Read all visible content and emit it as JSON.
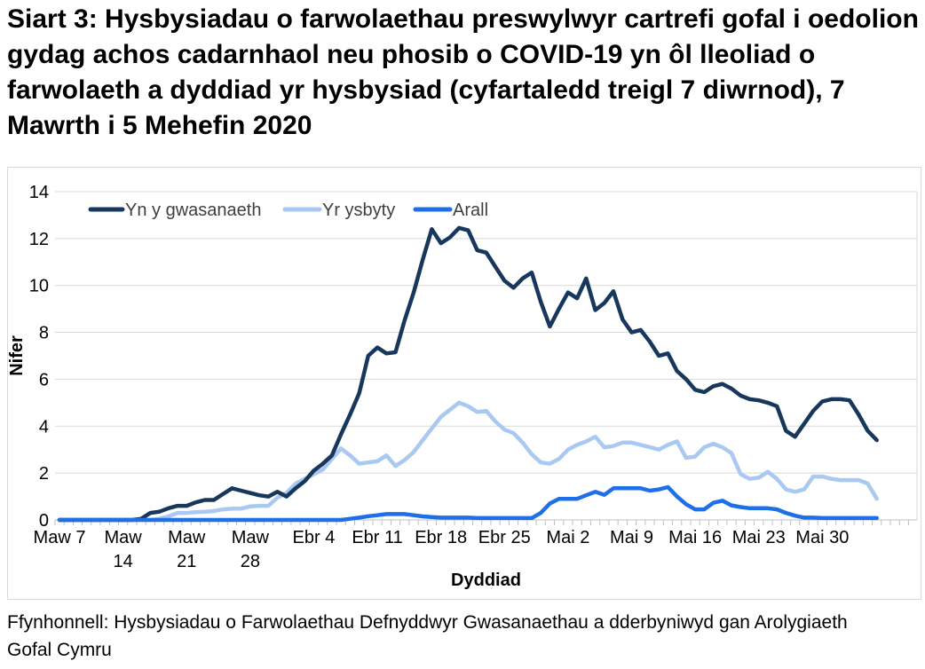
{
  "header": {
    "title": "Siart 3: Hysbysiadau o farwolaethau preswylwyr cartrefi gofal i oedolion gydag achos cadarnhaol neu phosib o COVID-19 yn ôl lleoliad o farwolaeth a dyddiad yr hysbysiad (cyfartaledd treigl 7 diwrnod), 7 Mawrth i 5 Mehefin 2020"
  },
  "footer": {
    "source": "Ffynhonnell: Hysbysiadau o Farwolaethau Defnyddwyr Gwasanaethau a dderbyniwyd gan Arolygiaeth Gofal Cymru"
  },
  "chart_data": {
    "type": "line",
    "xlabel": "Dyddiad",
    "ylabel": "Nifer",
    "ylim": [
      0,
      14
    ],
    "ytick_step": 2,
    "grid": true,
    "legend_position": "top-left-inside",
    "x_start": "Maw 7",
    "x_end": "Mehefin 5",
    "days_total": 91,
    "xtick_day_indices": [
      0,
      7,
      14,
      21,
      28,
      35,
      42,
      49,
      56,
      63,
      70,
      77,
      84
    ],
    "xtick_labels": [
      [
        "Maw 7"
      ],
      [
        "Maw",
        "14"
      ],
      [
        "Maw",
        "21"
      ],
      [
        "Maw",
        "28"
      ],
      [
        "Ebr 4"
      ],
      [
        "Ebr 11"
      ],
      [
        "Ebr 18"
      ],
      [
        "Ebr 25"
      ],
      [
        "Mai 2"
      ],
      [
        "Mai 9"
      ],
      [
        "Mai 16"
      ],
      [
        "Mai 23"
      ],
      [
        "Mai 30"
      ]
    ],
    "grid_color": "#d9d9d9",
    "tick_color": "#bfbfbf",
    "text_color": "#000000",
    "legend_text_color": "#3f3f3f",
    "series": [
      {
        "name": "Yn y gwasanaeth",
        "color": "#17375d",
        "values": [
          0,
          0,
          0,
          0,
          0,
          0,
          0,
          0,
          0,
          0.05,
          0.3,
          0.35,
          0.5,
          0.6,
          0.6,
          0.75,
          0.85,
          0.85,
          1.1,
          1.35,
          1.25,
          1.15,
          1.05,
          1.0,
          1.2,
          1.0,
          1.35,
          1.65,
          2.1,
          2.4,
          2.75,
          3.65,
          4.5,
          5.4,
          7.0,
          7.35,
          7.1,
          7.15,
          8.5,
          9.7,
          11.1,
          12.4,
          11.8,
          12.05,
          12.45,
          12.35,
          11.5,
          11.4,
          10.8,
          10.2,
          9.9,
          10.3,
          10.55,
          9.3,
          8.25,
          9.0,
          9.7,
          9.45,
          10.3,
          8.95,
          9.25,
          9.75,
          8.55,
          8.0,
          8.1,
          7.6,
          7.0,
          7.1,
          6.35,
          6.0,
          5.55,
          5.45,
          5.7,
          5.8,
          5.6,
          5.3,
          5.15,
          5.1,
          5.0,
          4.85,
          3.8,
          3.55,
          4.1,
          4.65,
          5.05,
          5.15,
          5.15,
          5.1,
          4.5,
          3.8,
          3.4
        ]
      },
      {
        "name": "Yr ysbyty",
        "color": "#a9c9f3",
        "values": [
          0,
          0,
          0,
          0,
          0,
          0,
          0,
          0,
          0,
          0,
          0,
          0.05,
          0.15,
          0.3,
          0.3,
          0.33,
          0.35,
          0.38,
          0.45,
          0.48,
          0.48,
          0.58,
          0.6,
          0.6,
          0.95,
          1.15,
          1.55,
          1.75,
          1.95,
          2.15,
          2.6,
          3.05,
          2.75,
          2.4,
          2.45,
          2.5,
          2.75,
          2.3,
          2.55,
          2.9,
          3.4,
          3.9,
          4.4,
          4.7,
          5.0,
          4.85,
          4.6,
          4.65,
          4.2,
          3.85,
          3.7,
          3.3,
          2.8,
          2.45,
          2.4,
          2.6,
          3.0,
          3.2,
          3.35,
          3.55,
          3.1,
          3.15,
          3.3,
          3.3,
          3.2,
          3.1,
          3.0,
          3.2,
          3.35,
          2.65,
          2.7,
          3.1,
          3.25,
          3.1,
          2.85,
          1.95,
          1.75,
          1.8,
          2.05,
          1.75,
          1.3,
          1.2,
          1.3,
          1.85,
          1.85,
          1.75,
          1.7,
          1.7,
          1.7,
          1.55,
          0.9
        ]
      },
      {
        "name": "Arall",
        "color": "#1e6fe8",
        "values": [
          0,
          0,
          0,
          0,
          0,
          0,
          0,
          0,
          0,
          0,
          0,
          0,
          0,
          0,
          0,
          0,
          0,
          0,
          0,
          0,
          0,
          0,
          0,
          0,
          0,
          0,
          0,
          0,
          0,
          0,
          0,
          0,
          0.05,
          0.1,
          0.16,
          0.2,
          0.25,
          0.25,
          0.25,
          0.2,
          0.15,
          0.12,
          0.1,
          0.1,
          0.1,
          0.1,
          0.08,
          0.08,
          0.08,
          0.08,
          0.08,
          0.08,
          0.08,
          0.3,
          0.7,
          0.9,
          0.9,
          0.9,
          1.05,
          1.2,
          1.07,
          1.35,
          1.35,
          1.35,
          1.35,
          1.25,
          1.3,
          1.4,
          1.0,
          0.67,
          0.45,
          0.45,
          0.73,
          0.82,
          0.62,
          0.55,
          0.5,
          0.5,
          0.5,
          0.45,
          0.3,
          0.18,
          0.1,
          0.1,
          0.08,
          0.08,
          0.08,
          0.08,
          0.08,
          0.08,
          0.08
        ]
      }
    ]
  }
}
